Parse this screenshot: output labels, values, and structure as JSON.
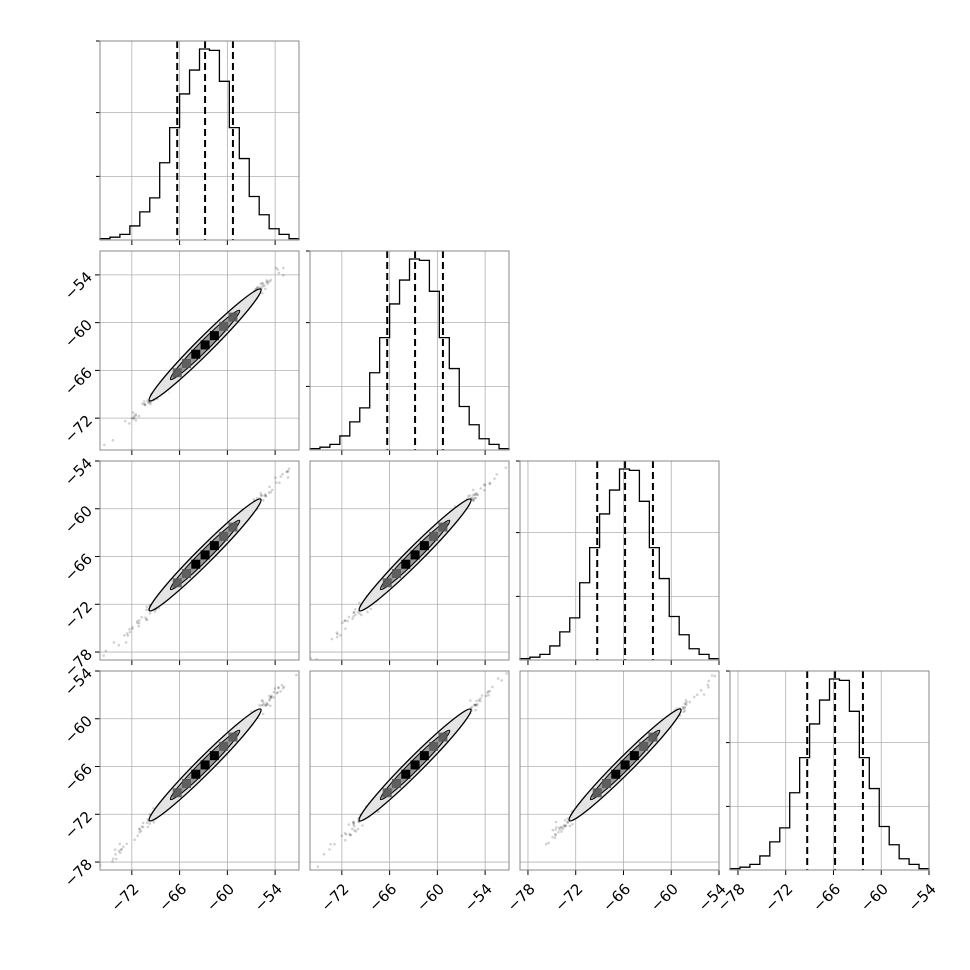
{
  "chart_data": {
    "type": "corner",
    "ndim": 4,
    "parameters": [
      "",
      "",
      "",
      ""
    ],
    "bins": 20,
    "quantile_lines": "dashed",
    "grid": true,
    "x_ranges": [
      [
        -76,
        -51
      ],
      [
        -76,
        -51
      ],
      [
        -79,
        -54
      ],
      [
        -79,
        -54
      ]
    ],
    "y_ranges": [
      null,
      [
        -76,
        -51
      ],
      [
        -79,
        -54
      ],
      [
        -79,
        -54
      ]
    ],
    "xtick_labels": [
      [
        "−72",
        "−66",
        "−60",
        "−54"
      ],
      [
        "−72",
        "−66",
        "−60",
        "−54"
      ],
      [
        "−78",
        "−72",
        "−66",
        "−60",
        "−54"
      ],
      [
        "−78",
        "−72",
        "−66",
        "−60",
        "−54"
      ]
    ],
    "ytick_labels": [
      null,
      [
        "−54",
        "−60",
        "−66",
        "−72"
      ],
      [
        "−54",
        "−60",
        "−66",
        "−72",
        "−78"
      ],
      [
        "−54",
        "−60",
        "−66",
        "−72",
        "−78"
      ]
    ],
    "quantiles": [
      [
        -66.3,
        -62.8,
        -59.3
      ],
      [
        -66.3,
        -62.8,
        -59.3
      ],
      [
        -69.3,
        -65.8,
        -62.3
      ],
      [
        -69.3,
        -65.8,
        -62.3
      ]
    ],
    "histograms": [
      {
        "edges": [
          -76,
          -51
        ],
        "counts": [
          1,
          2,
          4,
          10,
          20,
          30,
          55,
          80,
          104,
          121,
          136,
          135,
          113,
          80,
          58,
          31,
          18,
          8,
          4,
          1
        ]
      },
      {
        "edges": [
          -76,
          -51
        ],
        "counts": [
          1,
          2,
          4,
          10,
          20,
          30,
          55,
          80,
          104,
          121,
          136,
          135,
          113,
          80,
          58,
          31,
          18,
          8,
          4,
          1
        ]
      },
      {
        "edges": [
          -79,
          -54
        ],
        "counts": [
          1,
          2,
          4,
          10,
          20,
          30,
          55,
          80,
          104,
          121,
          136,
          135,
          113,
          80,
          58,
          31,
          18,
          8,
          4,
          1
        ]
      },
      {
        "edges": [
          -79,
          -54
        ],
        "counts": [
          1,
          2,
          4,
          10,
          20,
          30,
          55,
          80,
          104,
          121,
          136,
          135,
          113,
          80,
          58,
          31,
          18,
          8,
          4,
          1
        ]
      }
    ]
  }
}
